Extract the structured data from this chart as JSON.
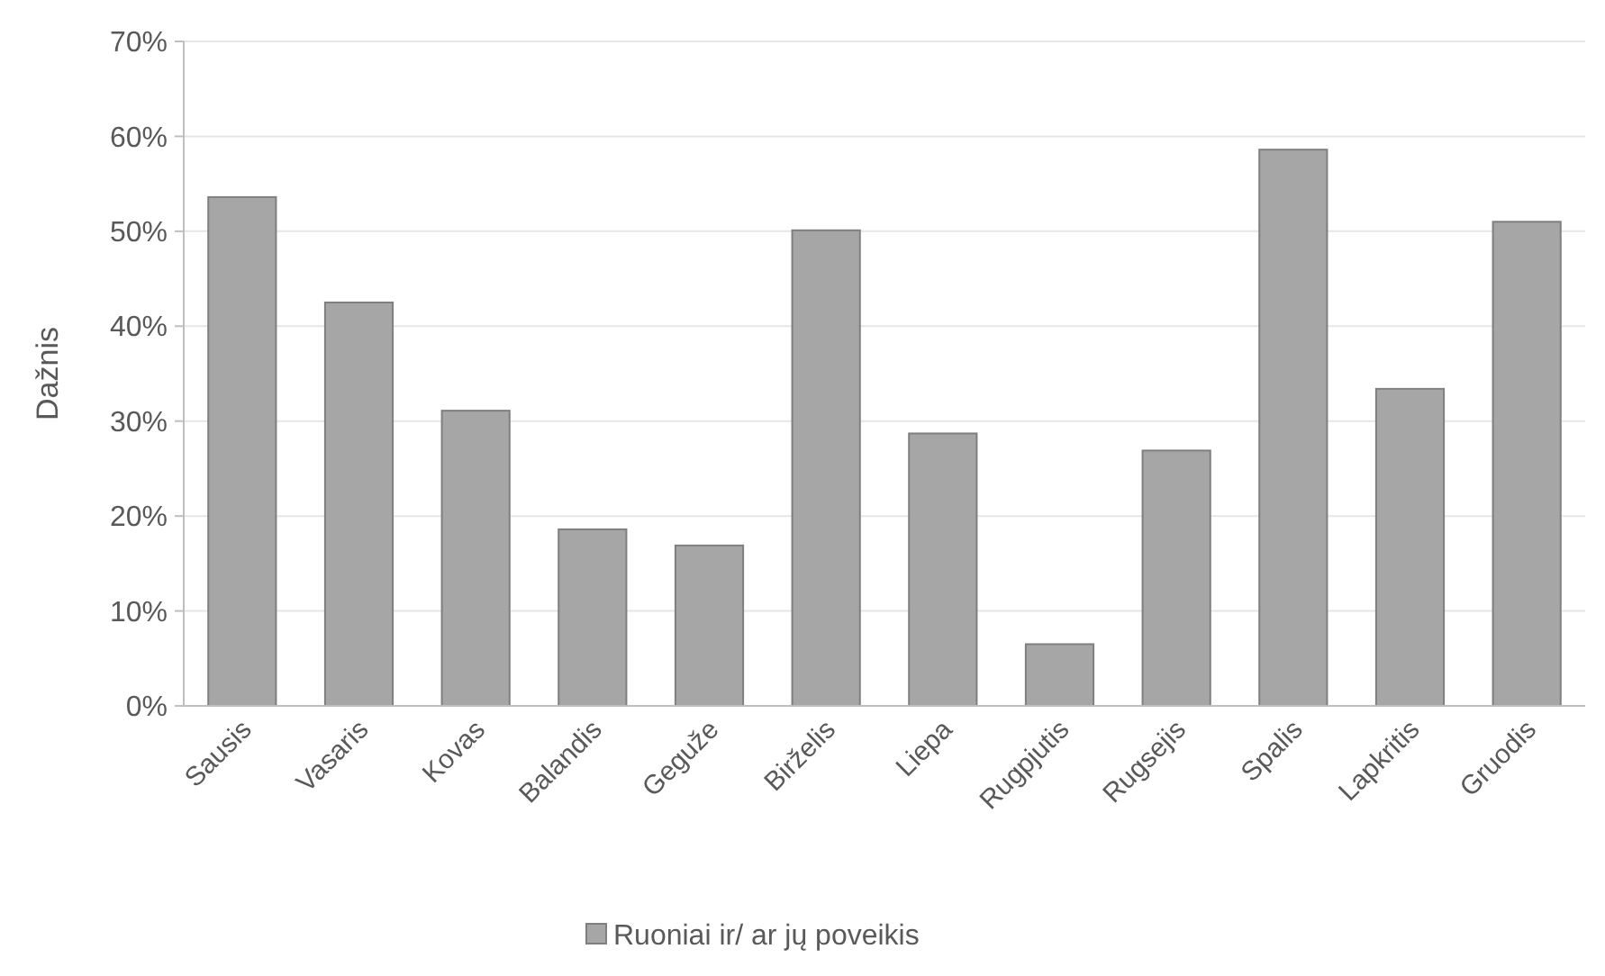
{
  "chart_data": {
    "type": "bar",
    "ylabel": "Dažnis",
    "categories": [
      "Sausis",
      "Vasaris",
      "Kovas",
      "Balandis",
      "Geguže",
      "Birželis",
      "Liepa",
      "Rugpjutis",
      "Rugsejis",
      "Spalis",
      "Lapkritis",
      "Gruodis"
    ],
    "series": [
      {
        "name": "Ruoniai ir/ ar jų poveikis",
        "color": "#a6a6a6",
        "values": [
          53.6,
          42.5,
          31.1,
          18.6,
          16.9,
          50.1,
          28.7,
          6.5,
          26.9,
          58.6,
          33.4,
          51.0
        ]
      }
    ],
    "ylim": [
      0,
      70
    ],
    "yticks": [
      {
        "value": 0,
        "label": "0%"
      },
      {
        "value": 10,
        "label": "10%"
      },
      {
        "value": 20,
        "label": "20%"
      },
      {
        "value": 30,
        "label": "30%"
      },
      {
        "value": 40,
        "label": "40%"
      },
      {
        "value": 50,
        "label": "50%"
      },
      {
        "value": 60,
        "label": "60%"
      },
      {
        "value": 70,
        "label": "70%"
      }
    ],
    "grid": "y",
    "legend": "bottom"
  }
}
